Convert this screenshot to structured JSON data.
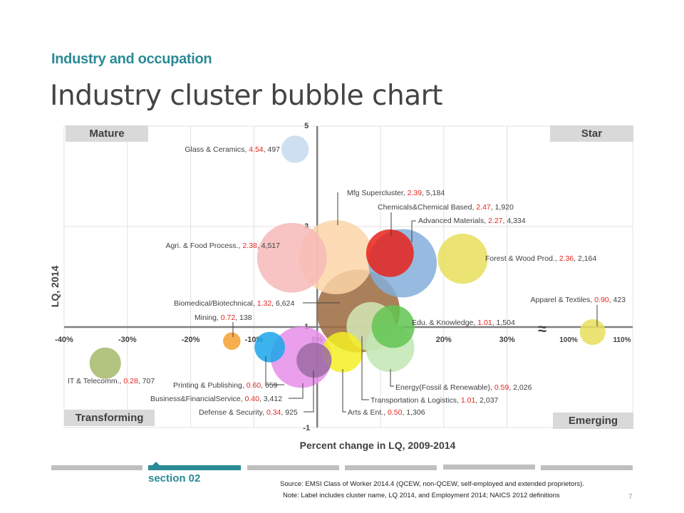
{
  "header": {
    "section": "Industry and occupation",
    "title": "Industry cluster bubble chart"
  },
  "quadrants": {
    "top_left": "Mature",
    "top_right": "Star",
    "bottom_left": "Transforming",
    "bottom_right": "Emerging"
  },
  "chart_data": {
    "type": "scatter",
    "variant": "bubble",
    "xlabel": "Percent change in LQ, 2009-2014",
    "ylabel": "LQ, 2014",
    "x_ticks": [
      "-40%",
      "-30%",
      "-20%",
      "-10%",
      "0%",
      "10%",
      "20%",
      "30%"
    ],
    "x_ticks_broken": [
      "100%",
      "110%"
    ],
    "axis_break_symbol": "≈",
    "y_ticks": [
      "5",
      "3",
      "1",
      "-1"
    ],
    "xlim_main": [
      -40,
      35
    ],
    "xlim_broken": [
      96,
      112
    ],
    "ylim": [
      -1,
      5
    ],
    "x_crosses_y_at": 1,
    "grid": true,
    "size_variable": "Employment 2014",
    "series": [
      {
        "name": "Glass & Ceramics",
        "x": -3.5,
        "y": 4.54,
        "employment": 497,
        "color": "#c5d9ee",
        "label_lq": "4.54",
        "label_emp": "497"
      },
      {
        "name": "Mfg Supercluster",
        "x": 3,
        "y": 2.39,
        "employment": 5184,
        "color": "#fcd5a8",
        "label_lq": "2.39",
        "label_emp": "5,184"
      },
      {
        "name": "Chemicals&Chemical Based",
        "x": 11.5,
        "y": 2.47,
        "employment": 1920,
        "color": "#e8221b",
        "label_lq": "2.47",
        "label_emp": "1,920"
      },
      {
        "name": "Advanced Materials",
        "x": 13.5,
        "y": 2.27,
        "employment": 4334,
        "color": "#84aedb",
        "label_lq": "2.27",
        "label_emp": "4,334"
      },
      {
        "name": "Agri. & Food Process.",
        "x": -4,
        "y": 2.38,
        "employment": 4517,
        "color": "#f7b8b8",
        "label_lq": "2.38",
        "label_emp": "4,517"
      },
      {
        "name": "Forest & Wood Prod.",
        "x": 23,
        "y": 2.36,
        "employment": 2164,
        "color": "#e7df5c",
        "label_lq": "2.36",
        "label_emp": "2,164"
      },
      {
        "name": "Apparel & Textiles",
        "x": 104.5,
        "y": 0.9,
        "employment": 423,
        "color": "#e7df5c",
        "label_lq": "0.90",
        "label_emp": "423"
      },
      {
        "name": "Biomedical/Biotechnical",
        "x": 6.5,
        "y": 1.32,
        "employment": 6624,
        "color": "#9b6a3e",
        "label_lq": "1.32",
        "label_emp": "6,624"
      },
      {
        "name": "Mining",
        "x": -13.5,
        "y": 0.72,
        "employment": 138,
        "color": "#f5a030",
        "label_lq": "0.72",
        "label_emp": "138"
      },
      {
        "name": "Edu. & Knowledge",
        "x": 12,
        "y": 1.01,
        "employment": 1504,
        "color": "#62c552",
        "label_lq": "1.01",
        "label_emp": "1,504"
      },
      {
        "name": "Transportation & Logistics",
        "x": 8.5,
        "y": 1.01,
        "employment": 2037,
        "color": "#d3e8b7",
        "label_lq": "1.01",
        "label_emp": "2,037"
      },
      {
        "name": "Energy(Fossil & Renewable)",
        "x": 11.5,
        "y": 0.59,
        "employment": 2026,
        "color": "#c2e6b3",
        "label_lq": "0.59",
        "label_emp": "2,026"
      },
      {
        "name": "IT & Telecomm.",
        "x": -33.5,
        "y": 0.28,
        "employment": 707,
        "color": "#a6b86a",
        "label_lq": "0.28",
        "label_emp": "707"
      },
      {
        "name": "Printing & Publishing",
        "x": -7.5,
        "y": 0.6,
        "employment": 659,
        "color": "#1aa6ea",
        "label_lq": "0.60",
        "label_emp": "659"
      },
      {
        "name": "Business&FinancialService",
        "x": -2.5,
        "y": 0.4,
        "employment": 3412,
        "color": "#e58ee8",
        "label_lq": "0.40",
        "label_emp": "3,412"
      },
      {
        "name": "Arts & Ent.",
        "x": 4,
        "y": 0.5,
        "employment": 1306,
        "color": "#f4ee25",
        "label_lq": "0.50",
        "label_emp": "1,306"
      },
      {
        "name": "Defense & Security",
        "x": -0.5,
        "y": 0.34,
        "employment": 925,
        "color": "#9b6aa3",
        "label_lq": "0.34",
        "label_emp": "925"
      }
    ]
  },
  "nav": {
    "active_label": "section 02",
    "segments": 6,
    "active_index": 1
  },
  "footer": {
    "source": "Source: EMSI Class of Worker 2014.4 (QCEW, non-QCEW, self-employed and extended proprietors).",
    "note": "Note: Label includes cluster name, LQ 2014, and Employment 2014; NAICS 2012 definitions",
    "page_number": "7"
  },
  "colors": {
    "accent": "#2a8a96",
    "value_highlight": "#e8221b",
    "quadrant_bg": "#d9d9d9",
    "grid": "#d9d9d9",
    "axis": "#7f7f7f"
  }
}
